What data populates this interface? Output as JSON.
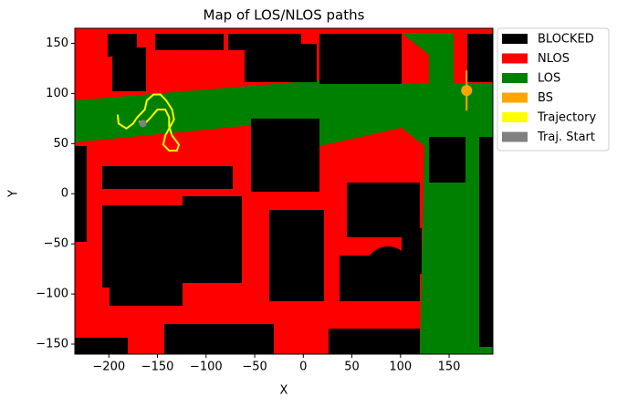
{
  "chart_data": {
    "type": "map",
    "title": "Map of LOS/NLOS paths",
    "x_label": "X",
    "y_label": "Y",
    "xlim": [
      -235,
      195
    ],
    "ylim": [
      -160,
      165
    ],
    "xticks": [
      {
        "value": -200,
        "label": "−200"
      },
      {
        "value": -150,
        "label": "−150"
      },
      {
        "value": -100,
        "label": "−100"
      },
      {
        "value": -50,
        "label": "−50"
      },
      0,
      50,
      100,
      150
    ],
    "yticks": [
      {
        "value": -150,
        "label": "−150"
      },
      {
        "value": -100,
        "label": "−100"
      },
      {
        "value": -50,
        "label": "−50"
      },
      0,
      50,
      100,
      150
    ],
    "legend_position": "outside-upper-right",
    "series": [
      {
        "name": "BLOCKED",
        "color": "#000000"
      },
      {
        "name": "NLOS",
        "color": "#ff0000"
      },
      {
        "name": "LOS",
        "color": "#008000"
      },
      {
        "name": "BS",
        "color": "#ffa500",
        "x": [
          168
        ],
        "y": [
          103
        ]
      },
      {
        "name": "Trajectory",
        "color": "#ffff00",
        "x": [
          -191,
          -190,
          -182,
          -175,
          -171,
          -163,
          -161,
          -154,
          -147,
          -141,
          -135,
          -133,
          -138,
          -142,
          -144,
          -138,
          -130,
          -128,
          -135,
          -138,
          -138,
          -142,
          -150,
          -157,
          -163,
          -169
        ],
        "y": [
          79,
          70,
          65,
          70,
          76,
          84,
          93,
          99,
          99,
          93,
          84,
          74,
          65,
          58,
          49,
          43,
          43,
          49,
          58,
          67,
          76,
          84,
          84,
          76,
          70,
          72
        ]
      },
      {
        "name": "Traj. Start",
        "color": "#808080",
        "x": [
          -165
        ],
        "y": [
          70
        ]
      }
    ]
  }
}
